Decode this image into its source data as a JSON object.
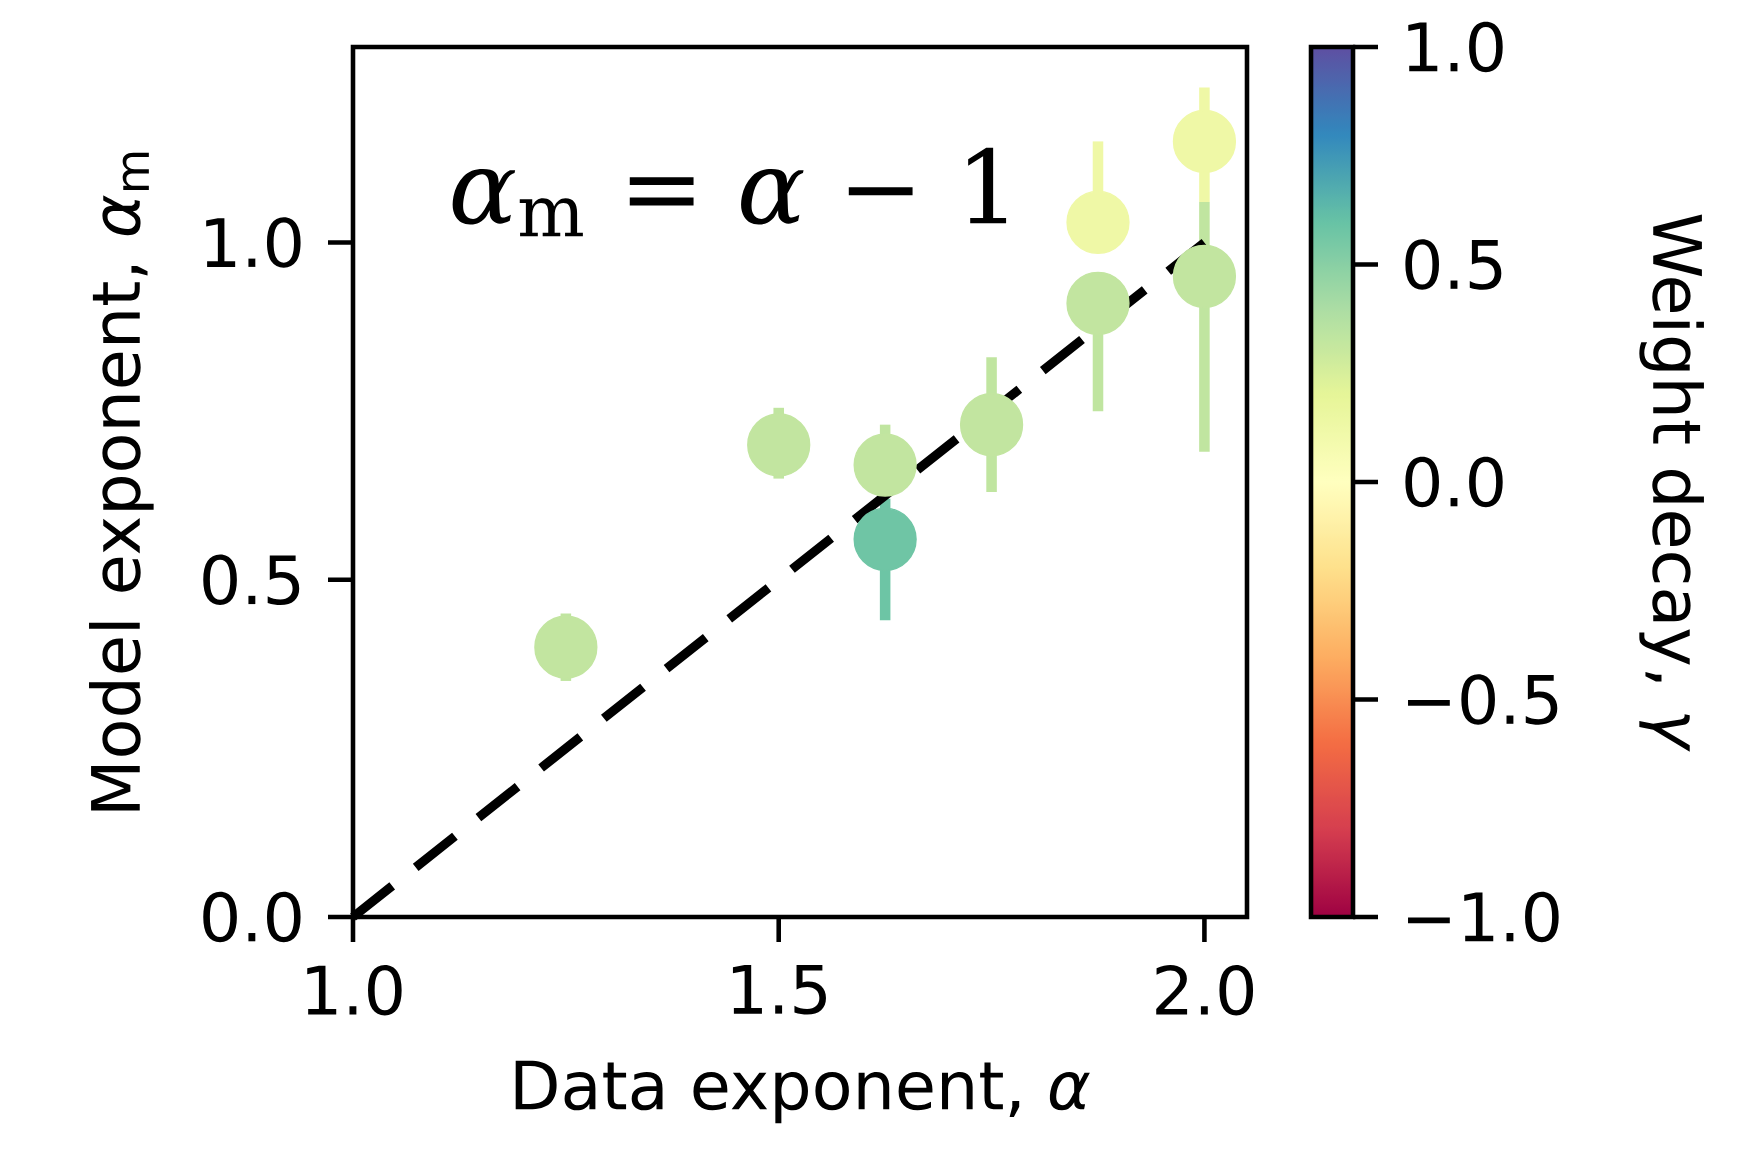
{
  "chart_data": {
    "type": "scatter",
    "xlabel": "Data exponent, *α*",
    "ylabel": "Model exponent, *α*$_{m}$",
    "clabel": "Weight decay, *γ*",
    "annotations": [
      "*α*$_{m}$ = *α* − 1"
    ],
    "xlim": [
      1.0,
      2.05
    ],
    "ylim": [
      0.0,
      1.29
    ],
    "xticks": [
      {
        "value": 1.0,
        "label": "1.0"
      },
      {
        "value": 1.5,
        "label": "1.5"
      },
      {
        "value": 2.0,
        "label": "2.0"
      }
    ],
    "yticks": [
      {
        "value": 0.0,
        "label": "0.0"
      },
      {
        "value": 0.5,
        "label": "0.5"
      },
      {
        "value": 1.0,
        "label": "1.0"
      }
    ],
    "clim": [
      -1.0,
      1.0
    ],
    "cticks": [
      {
        "value": -1.0,
        "label": "−1.0"
      },
      {
        "value": -0.5,
        "label": "−0.5"
      },
      {
        "value": 0.0,
        "label": "0.0"
      },
      {
        "value": 0.5,
        "label": "0.5"
      },
      {
        "value": 1.0,
        "label": "1.0"
      }
    ],
    "grid": false,
    "series": [
      {
        "marker": "circle",
        "x": [
          1.25,
          1.5,
          1.625,
          1.625,
          1.75,
          1.875,
          1.875,
          2.0,
          2.0
        ],
        "values": [
          0.4,
          0.7,
          0.67,
          0.56,
          0.73,
          0.91,
          1.03,
          0.95,
          1.15
        ],
        "errors": [
          [
            0.35,
            0.45
          ],
          [
            0.65,
            0.755
          ],
          [
            0.67,
            0.73
          ],
          [
            0.44,
            0.62
          ],
          [
            0.63,
            0.83
          ],
          [
            0.75,
            0.91
          ],
          [
            1.03,
            1.15
          ],
          [
            0.69,
            1.06
          ],
          [
            1.06,
            1.23
          ]
        ],
        "cvalues": [
          0.33,
          0.33,
          0.33,
          0.58,
          0.33,
          0.33,
          0.13,
          0.33,
          0.13
        ],
        "colors": [
          "#c2e5a0",
          "#c2e5a0",
          "#c2e5a0",
          "#6fc5a5",
          "#c2e5a0",
          "#c2e5a0",
          "#eff8a6",
          "#c2e5a0",
          "#eff8a6"
        ]
      },
      {
        "type": "line",
        "x": [
          1.0,
          2.0
        ],
        "values": [
          0.0,
          1.0
        ],
        "color": "#000000",
        "line_style": "dashed",
        "marker": "none"
      }
    ]
  }
}
